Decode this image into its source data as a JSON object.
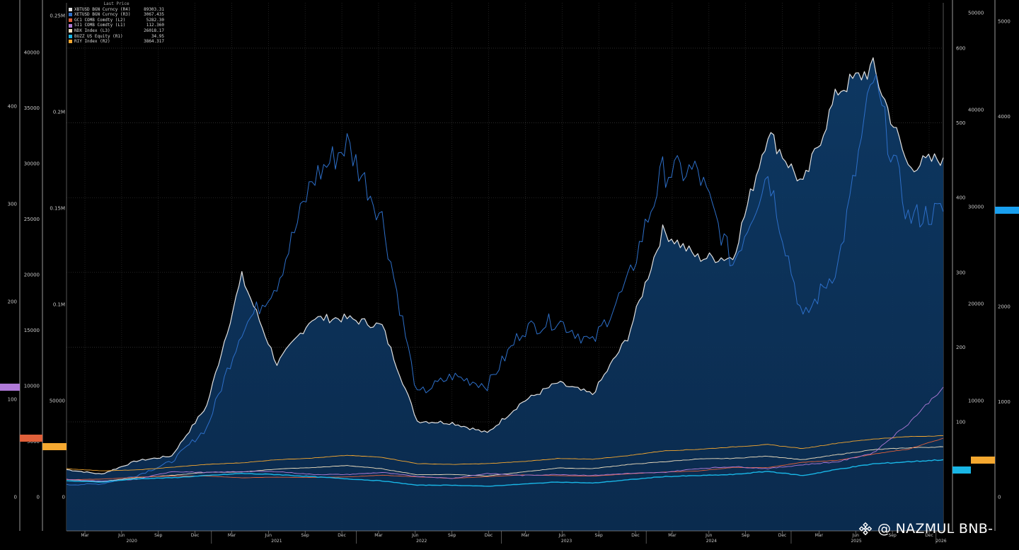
{
  "legend": {
    "header": "Last Price",
    "items": [
      {
        "name": "XBTUSD BGN Curncy  (R4)",
        "value": "89303.31",
        "color": "#e0e0e0"
      },
      {
        "name": "XETUSD BGN Curncy  (R3)",
        "value": "3067.435",
        "color": "#2d6fc9"
      },
      {
        "name": "GC1 COMB Comdty  (L2)",
        "value": "5282.30",
        "color": "#e0603a"
      },
      {
        "name": "SI1 COMB Comdty  (L1)",
        "value": "112.360",
        "color": "#b07ad8"
      },
      {
        "name": "NDX Index  (L3)",
        "value": "26018.17",
        "color": "#f0e0c0"
      },
      {
        "name": "BUZZ US Equity  (R1)",
        "value": "34.95",
        "color": "#19b6e6"
      },
      {
        "name": "RIY Index  (R2)",
        "value": "3864.317",
        "color": "#f5a830"
      }
    ]
  },
  "axes": {
    "left_l1": [
      "0",
      "100",
      "200",
      "300",
      "400"
    ],
    "left_l2": [
      "0",
      "5000",
      "10000",
      "15000",
      "20000",
      "25000",
      "30000",
      "35000",
      "40000"
    ],
    "left_l3": [
      "0",
      "50000",
      "0.1M",
      "0.15M",
      "0.2M",
      "0.25M"
    ],
    "right_r3": [
      "100",
      "200",
      "300",
      "400",
      "500",
      "600"
    ],
    "right_r4": [
      "10000",
      "20000",
      "30000",
      "40000",
      "50000"
    ],
    "right_r5": [
      "0",
      "1000",
      "2000",
      "3000",
      "4000",
      "5000"
    ],
    "x_months": [
      "Mar",
      "Jun",
      "Sep",
      "Dec",
      "Mar",
      "Jun",
      "Sep",
      "Dec",
      "Mar",
      "Jun",
      "Sep",
      "Dec",
      "Mar",
      "Jun",
      "Sep",
      "Dec",
      "Mar",
      "Jun",
      "Sep",
      "Dec",
      "Mar",
      "Jun",
      "Sep",
      "Dec"
    ],
    "x_years": [
      "2020",
      "2021",
      "2022",
      "2023",
      "2024",
      "2025",
      "2026"
    ]
  },
  "tags": {
    "silver": {
      "color": "#b07ad8"
    },
    "gold": {
      "color": "#e0603a"
    },
    "ndx": {
      "color": "#f5a830"
    },
    "buzz": {
      "color": "#19b6e6"
    },
    "riy": {
      "color": "#f5a830"
    },
    "xbt": {
      "color": "#19a0f0"
    }
  },
  "watermark": "@ NAZMUL BNB-",
  "chart_data": {
    "type": "line",
    "title": "",
    "x": [
      "2020-01",
      "2020-03",
      "2020-06",
      "2020-09",
      "2020-12",
      "2021-03",
      "2021-06",
      "2021-09",
      "2021-12",
      "2022-03",
      "2022-06",
      "2022-09",
      "2022-12",
      "2023-03",
      "2023-06",
      "2023-09",
      "2023-12",
      "2024-03",
      "2024-06",
      "2024-09",
      "2024-12",
      "2025-03",
      "2025-06",
      "2025-09",
      "2025-12",
      "2026-01"
    ],
    "grid": true,
    "series": [
      {
        "name": "XBTUSD BGN Curncy (R4)",
        "axis": "R4",
        "values": [
          7200,
          6000,
          9500,
          10800,
          24000,
          58000,
          35000,
          47000,
          47000,
          45000,
          20000,
          19500,
          16800,
          25000,
          30000,
          27000,
          42000,
          70000,
          63000,
          63000,
          96000,
          82000,
          107000,
          113000,
          87000,
          89303.31
        ]
      },
      {
        "name": "XETUSD BGN Curncy (R3)",
        "axis": "R3",
        "values": [
          130,
          140,
          230,
          380,
          740,
          1800,
          2300,
          3400,
          3800,
          3000,
          1100,
          1300,
          1200,
          1800,
          1900,
          1650,
          2300,
          3500,
          3500,
          2500,
          3500,
          1900,
          2500,
          4500,
          3000,
          3067.435
        ]
      },
      {
        "name": "GC1 COMB Comdty (L2)",
        "axis": "L2",
        "values": [
          1550,
          1600,
          1780,
          1880,
          1880,
          1720,
          1780,
          1750,
          1800,
          1950,
          1810,
          1670,
          1820,
          1980,
          1920,
          1870,
          2070,
          2230,
          2330,
          2650,
          2640,
          3120,
          3300,
          3850,
          4300,
          5282.3
        ]
      },
      {
        "name": "SI1 COMB Comdty (L1)",
        "axis": "L1",
        "values": [
          18,
          16,
          18,
          26,
          25,
          26,
          26,
          23,
          23,
          25,
          21,
          19,
          24,
          22,
          23,
          22,
          24,
          25,
          29,
          31,
          29,
          33,
          36,
          45,
          75,
          112.36
        ]
      },
      {
        "name": "NDX Index (L3)",
        "axis": "L3",
        "values": [
          9000,
          8000,
          10000,
          11200,
          12800,
          12900,
          14500,
          15200,
          16300,
          14600,
          11500,
          11700,
          10900,
          12900,
          15000,
          14700,
          16800,
          18200,
          19700,
          20000,
          21200,
          19300,
          22000,
          24500,
          25500,
          26018.17
        ]
      },
      {
        "name": "BUZZ US Equity (R1)",
        "axis": "R1",
        "values": [
          15,
          14,
          17,
          18,
          20,
          22,
          21,
          19,
          17,
          15,
          11,
          11,
          10,
          12,
          14,
          13,
          16,
          19,
          20,
          21,
          24,
          20,
          26,
          31,
          33,
          34.95
        ]
      },
      {
        "name": "RIY Index (R2)",
        "axis": "R2",
        "values": [
          1780,
          1650,
          1700,
          1870,
          2050,
          2150,
          2350,
          2450,
          2620,
          2500,
          2100,
          2050,
          2100,
          2230,
          2420,
          2380,
          2600,
          2900,
          3000,
          3150,
          3300,
          3050,
          3400,
          3650,
          3800,
          3864.317
        ]
      }
    ]
  }
}
